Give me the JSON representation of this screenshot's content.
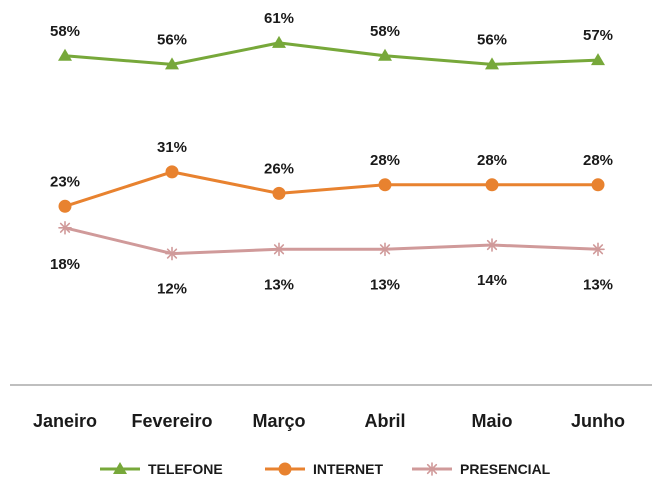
{
  "chart_data": {
    "type": "line",
    "categories": [
      "Janeiro",
      "Fevereiro",
      "Março",
      "Abril",
      "Maio",
      "Junho"
    ],
    "series": [
      {
        "name": "TELEFONE",
        "values": [
          58,
          56,
          61,
          58,
          56,
          57
        ],
        "labels": [
          "58%",
          "56%",
          "61%",
          "58%",
          "56%",
          "57%"
        ],
        "color": "#77a83a",
        "marker": "triangle"
      },
      {
        "name": "INTERNET",
        "values": [
          23,
          31,
          26,
          28,
          28,
          28
        ],
        "labels": [
          "23%",
          "31%",
          "26%",
          "28%",
          "28%",
          "28%"
        ],
        "color": "#e8822f",
        "marker": "circle"
      },
      {
        "name": "PRESENCIAL",
        "values": [
          18,
          12,
          13,
          13,
          14,
          13
        ],
        "labels": [
          "18%",
          "12%",
          "13%",
          "13%",
          "14%",
          "13%"
        ],
        "color": "#d09a9a",
        "marker": "star"
      }
    ],
    "value_suffix": "%",
    "legend_position": "bottom",
    "grid": false
  }
}
